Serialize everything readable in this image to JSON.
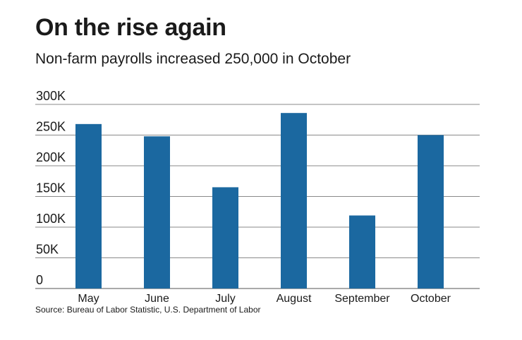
{
  "header": {
    "title": "On the rise again",
    "subtitle": "Non-farm payrolls increased 250,000 in October"
  },
  "footer": {
    "source": "Source: Bureau of Labor Statistic, U.S. Department of Labor"
  },
  "colors": {
    "bar": "#1b68a0",
    "gridline": "#8a8a8a",
    "baseline": "#555555"
  },
  "chart_data": {
    "type": "bar",
    "title": "On the rise again",
    "subtitle": "Non-farm payrolls increased 250,000 in October",
    "xlabel": "",
    "ylabel": "",
    "categories": [
      "May",
      "June",
      "July",
      "August",
      "September",
      "October"
    ],
    "values": [
      268000,
      248000,
      165000,
      286000,
      119000,
      250000
    ],
    "ylim": [
      0,
      300000
    ],
    "yticks": [
      0,
      50000,
      100000,
      150000,
      200000,
      250000,
      300000
    ],
    "ytick_labels": [
      "0",
      "50K",
      "100K",
      "150K",
      "200K",
      "250K",
      "300K"
    ],
    "grid": true,
    "legend": "none"
  }
}
